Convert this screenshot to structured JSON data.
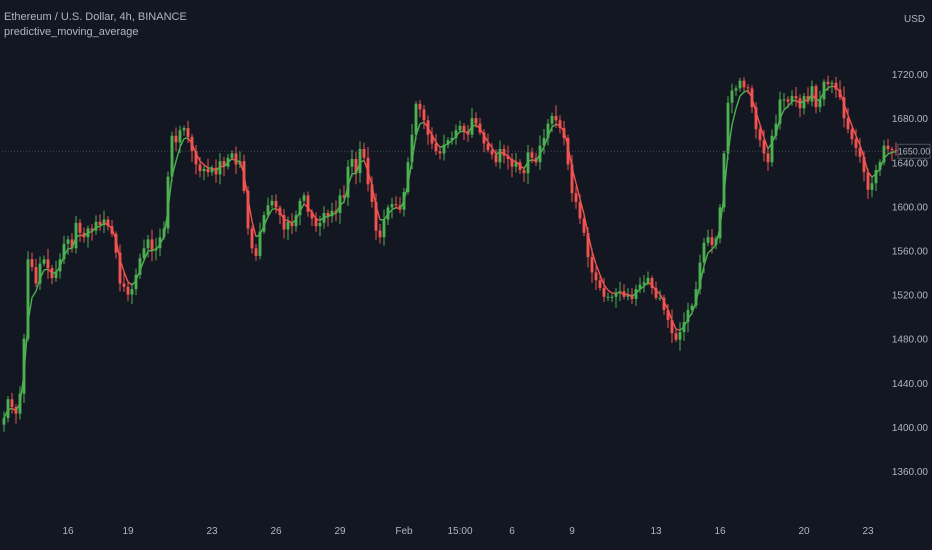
{
  "header": {
    "symbol_line": "Ethereum / U.S. Dollar, 4h, BINANCE",
    "indicator_name": "predictive_moving_average"
  },
  "axis": {
    "currency": "USD",
    "last_price_label": "1650.00"
  },
  "colors": {
    "background": "#131722",
    "up": "#4caf50",
    "down": "#f05350",
    "ma": "#f05350",
    "ma_alt": "#4caf50",
    "text": "#b2b5be"
  },
  "chart_data": {
    "type": "candlestick",
    "title": "",
    "ylabel": "USD",
    "ylim": [
      1340,
      1740
    ],
    "yticks": [
      1360,
      1400,
      1440,
      1480,
      1520,
      1560,
      1600,
      1640,
      1680,
      1720
    ],
    "ytick_labels": [
      "1360.00",
      "1400.00",
      "1440.00",
      "1480.00",
      "1520.00",
      "1560.00",
      "1600.00",
      "1640.00",
      "1680.00",
      "1720.00"
    ],
    "xticks": [
      {
        "label": "16",
        "bar": 16
      },
      {
        "label": "19",
        "bar": 31
      },
      {
        "label": "23",
        "bar": 52
      },
      {
        "label": "26",
        "bar": 68
      },
      {
        "label": "29",
        "bar": 84
      },
      {
        "label": "Feb",
        "bar": 100
      },
      {
        "label": "15:00",
        "bar": 114
      },
      {
        "label": "6",
        "bar": 127
      },
      {
        "label": "9",
        "bar": 142
      },
      {
        "label": "13",
        "bar": 163
      },
      {
        "label": "16",
        "bar": 179
      },
      {
        "label": "20",
        "bar": 200
      },
      {
        "label": "23",
        "bar": 216
      }
    ],
    "close": [
      1408,
      1425,
      1418,
      1412,
      1430,
      1480,
      1552,
      1545,
      1530,
      1548,
      1552,
      1544,
      1535,
      1541,
      1552,
      1566,
      1570,
      1562,
      1585,
      1576,
      1572,
      1580,
      1578,
      1586,
      1583,
      1588,
      1582,
      1575,
      1558,
      1530,
      1527,
      1520,
      1525,
      1538,
      1553,
      1562,
      1570,
      1560,
      1562,
      1572,
      1580,
      1627,
      1664,
      1658,
      1669,
      1671,
      1663,
      1650,
      1638,
      1632,
      1634,
      1631,
      1635,
      1629,
      1641,
      1636,
      1644,
      1648,
      1638,
      1641,
      1614,
      1580,
      1562,
      1555,
      1577,
      1592,
      1601,
      1605,
      1599,
      1592,
      1579,
      1586,
      1582,
      1592,
      1605,
      1610,
      1595,
      1589,
      1582,
      1585,
      1594,
      1591,
      1596,
      1594,
      1610,
      1608,
      1636,
      1643,
      1630,
      1652,
      1644,
      1620,
      1604,
      1578,
      1572,
      1588,
      1599,
      1602,
      1601,
      1597,
      1613,
      1640,
      1665,
      1693,
      1688,
      1678,
      1665,
      1657,
      1650,
      1648,
      1656,
      1660,
      1662,
      1669,
      1673,
      1668,
      1665,
      1680,
      1675,
      1667,
      1657,
      1651,
      1647,
      1640,
      1652,
      1646,
      1643,
      1636,
      1640,
      1633,
      1630,
      1649,
      1644,
      1640,
      1655,
      1662,
      1675,
      1682,
      1678,
      1671,
      1662,
      1638,
      1612,
      1604,
      1589,
      1576,
      1554,
      1540,
      1533,
      1526,
      1518,
      1518,
      1518,
      1521,
      1523,
      1518,
      1520,
      1516,
      1525,
      1529,
      1531,
      1535,
      1526,
      1517,
      1517,
      1506,
      1497,
      1485,
      1479,
      1486,
      1495,
      1506,
      1510,
      1525,
      1549,
      1567,
      1572,
      1565,
      1571,
      1599,
      1648,
      1694,
      1705,
      1707,
      1714,
      1708,
      1707,
      1690,
      1670,
      1660,
      1648,
      1640,
      1664,
      1675,
      1697,
      1697,
      1695,
      1700,
      1698,
      1689,
      1700,
      1695,
      1709,
      1690,
      1697,
      1713,
      1711,
      1712,
      1706,
      1699,
      1680,
      1670,
      1661,
      1653,
      1645,
      1631,
      1615,
      1621,
      1633,
      1640,
      1655,
      1652,
      1651,
      1650
    ],
    "ma_label": "predictive_moving_average"
  }
}
